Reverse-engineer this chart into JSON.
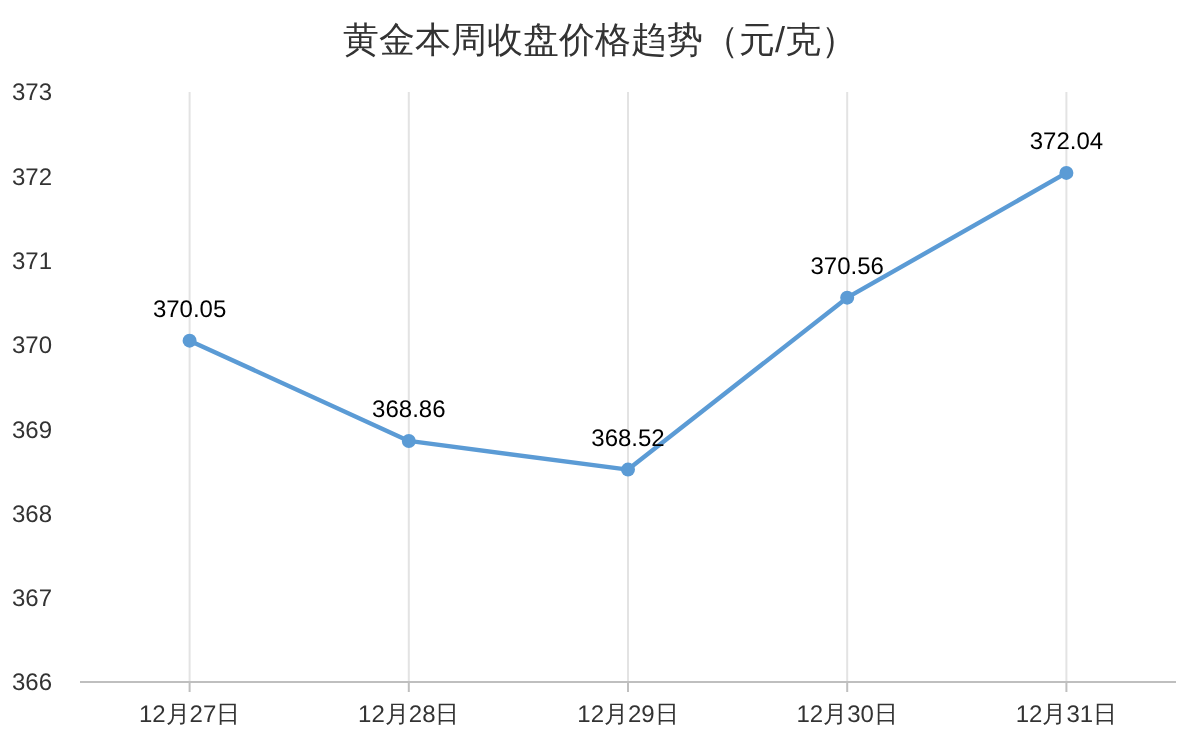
{
  "chart_data": {
    "type": "line",
    "title": "黄金本周收盘价格趋势（元/克）",
    "categories": [
      "12月27日",
      "12月28日",
      "12月29日",
      "12月30日",
      "12月31日"
    ],
    "series": [
      {
        "color": "#5b9bd5",
        "values": [
          370.05,
          368.86,
          368.52,
          370.56,
          372.04
        ]
      }
    ],
    "ylim": [
      366,
      373
    ],
    "yticks": [
      366,
      367,
      368,
      369,
      370,
      371,
      372,
      373
    ],
    "grid": "x",
    "marker": "circle",
    "line_style": "solid",
    "data_labels": true
  }
}
